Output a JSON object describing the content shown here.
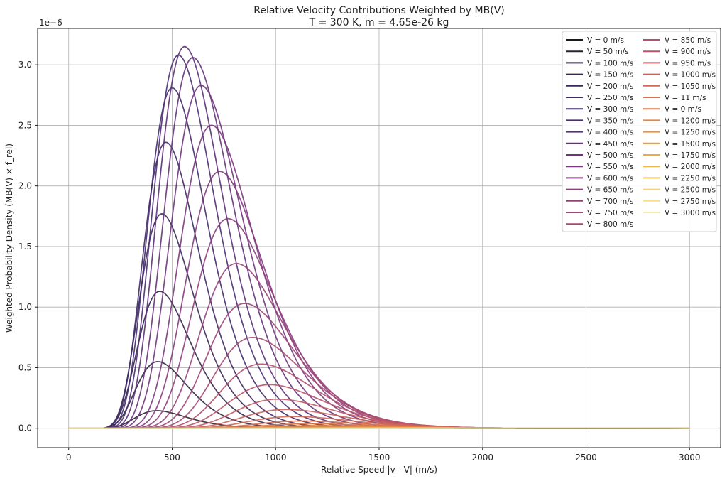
{
  "chart_data": {
    "type": "line",
    "title": "Relative Velocity Contributions Weighted by MB(V)",
    "subtitle": "T = 300 K, m = 4.65e-26 kg",
    "xlabel": "Relative Speed |v - V| (m/s)",
    "ylabel": "Weighted Probability Density (MB(V) × f_rel)",
    "y_scale_label": "1e−6",
    "xlim": [
      -150,
      3150
    ],
    "ylim": [
      -0.16,
      3.3
    ],
    "x_ticks": [
      0,
      500,
      1000,
      1500,
      2000,
      2500,
      3000
    ],
    "x_tick_labels": [
      "0",
      "500",
      "1000",
      "1500",
      "2000",
      "2500",
      "3000"
    ],
    "y_ticks": [
      0.0,
      0.5,
      1.0,
      1.5,
      2.0,
      2.5,
      3.0
    ],
    "y_tick_labels": [
      "0.0",
      "0.5",
      "1.0",
      "1.5",
      "2.0",
      "2.5",
      "3.0"
    ],
    "grid": true,
    "legend_position": "top-right",
    "legend_columns": 2,
    "x_range": [
      0,
      3000
    ],
    "series": [
      {
        "name": "V = 0 m/s",
        "peak_x": 420,
        "peak_y": 0.0,
        "color": "#1a1a1a"
      },
      {
        "name": "V = 50 m/s",
        "peak_x": 425,
        "peak_y": 0.145,
        "color": "#2a2230"
      },
      {
        "name": "V = 100 m/s",
        "peak_x": 430,
        "peak_y": 0.55,
        "color": "#2e2340"
      },
      {
        "name": "V = 150 m/s",
        "peak_x": 440,
        "peak_y": 1.13,
        "color": "#35264f"
      },
      {
        "name": "V = 200 m/s",
        "peak_x": 450,
        "peak_y": 1.77,
        "color": "#3a285a"
      },
      {
        "name": "V = 250 m/s",
        "peak_x": 470,
        "peak_y": 2.36,
        "color": "#3f2a66"
      },
      {
        "name": "V = 300 m/s",
        "peak_x": 500,
        "peak_y": 2.81,
        "color": "#452c6e"
      },
      {
        "name": "V = 350 m/s",
        "peak_x": 530,
        "peak_y": 3.08,
        "color": "#4d2e73"
      },
      {
        "name": "V = 400 m/s",
        "peak_x": 560,
        "peak_y": 3.15,
        "color": "#5a3077"
      },
      {
        "name": "V = 450 m/s",
        "peak_x": 600,
        "peak_y": 3.06,
        "color": "#65327a"
      },
      {
        "name": "V = 500 m/s",
        "peak_x": 640,
        "peak_y": 2.83,
        "color": "#70357c"
      },
      {
        "name": "V = 550 m/s",
        "peak_x": 690,
        "peak_y": 2.5,
        "color": "#7a387d"
      },
      {
        "name": "V = 600 m/s",
        "peak_x": 730,
        "peak_y": 2.12,
        "color": "#843b7d"
      },
      {
        "name": "V = 650 m/s",
        "peak_x": 770,
        "peak_y": 1.73,
        "color": "#8d3e7c"
      },
      {
        "name": "V = 700 m/s",
        "peak_x": 810,
        "peak_y": 1.36,
        "color": "#96427a"
      },
      {
        "name": "V = 750 m/s",
        "peak_x": 850,
        "peak_y": 1.03,
        "color": "#9e4677"
      },
      {
        "name": "V = 800 m/s",
        "peak_x": 890,
        "peak_y": 0.75,
        "color": "#a64a73"
      },
      {
        "name": "V = 850 m/s",
        "peak_x": 930,
        "peak_y": 0.53,
        "color": "#b04f6e"
      },
      {
        "name": "V = 900 m/s",
        "peak_x": 970,
        "peak_y": 0.36,
        "color": "#b95469"
      },
      {
        "name": "V = 950 m/s",
        "peak_x": 1010,
        "peak_y": 0.24,
        "color": "#c25a62"
      },
      {
        "name": "V = 1000 m/s",
        "peak_x": 1050,
        "peak_y": 0.155,
        "color": "#ca615c"
      },
      {
        "name": "V = 1050 m/s",
        "peak_x": 1090,
        "peak_y": 0.097,
        "color": "#d26956"
      },
      {
        "name": "V = 11 m/s",
        "peak_x": 1130,
        "peak_y": 0.06,
        "color": "#d97250"
      },
      {
        "name": "V = 0 m/s",
        "peak_x": 1170,
        "peak_y": 0.037,
        "color": "#e07b4a"
      },
      {
        "name": "V = 1200 m/s",
        "peak_x": 1210,
        "peak_y": 0.022,
        "color": "#e68545"
      },
      {
        "name": "V = 1250 m/s",
        "peak_x": 1250,
        "peak_y": 0.012,
        "color": "#eb9042"
      },
      {
        "name": "V = 1500 m/s",
        "peak_x": 1450,
        "peak_y": 0.006,
        "color": "#f09c40"
      },
      {
        "name": "V = 1750 m/s",
        "peak_x": 1700,
        "peak_y": 0.003,
        "color": "#f3a942"
      },
      {
        "name": "V = 2000 m/s",
        "peak_x": 1950,
        "peak_y": 0.0015,
        "color": "#f5b74a"
      },
      {
        "name": "V = 2250 m/s",
        "peak_x": 2200,
        "peak_y": 0.0008,
        "color": "#f6c55a"
      },
      {
        "name": "V = 2500 m/s",
        "peak_x": 2450,
        "peak_y": 0.0004,
        "color": "#f7d370"
      },
      {
        "name": "V = 2750 m/s",
        "peak_x": 2700,
        "peak_y": 0.0002,
        "color": "#f8df8c"
      },
      {
        "name": "V = 3000 m/s",
        "peak_x": 2950,
        "peak_y": 0.0001,
        "color": "#f9e9a8"
      }
    ]
  }
}
